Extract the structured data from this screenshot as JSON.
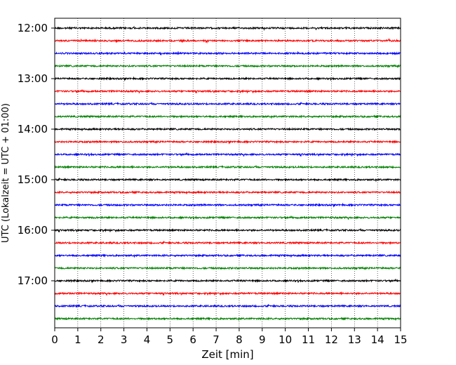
{
  "chart_data": {
    "type": "line",
    "title": "",
    "xlabel": "Zeit  [min]",
    "ylabel": "UTC (Lokalzeit = UTC + 01:00)",
    "xlim": [
      0,
      15
    ],
    "x_ticks": [
      "0",
      "1",
      "2",
      "3",
      "4",
      "5",
      "6",
      "7",
      "8",
      "9",
      "10",
      "11",
      "12",
      "13",
      "14",
      "15"
    ],
    "y_ticks": [
      "12:00",
      "13:00",
      "14:00",
      "15:00",
      "16:00",
      "17:00"
    ],
    "grid": "vertical dotted",
    "trace_colors": [
      "#000000",
      "#ff0000",
      "#0000ff",
      "#008000"
    ],
    "traces_per_hour": 4,
    "start_time": "12:00",
    "end_time": "17:45",
    "trace_count": 24
  }
}
